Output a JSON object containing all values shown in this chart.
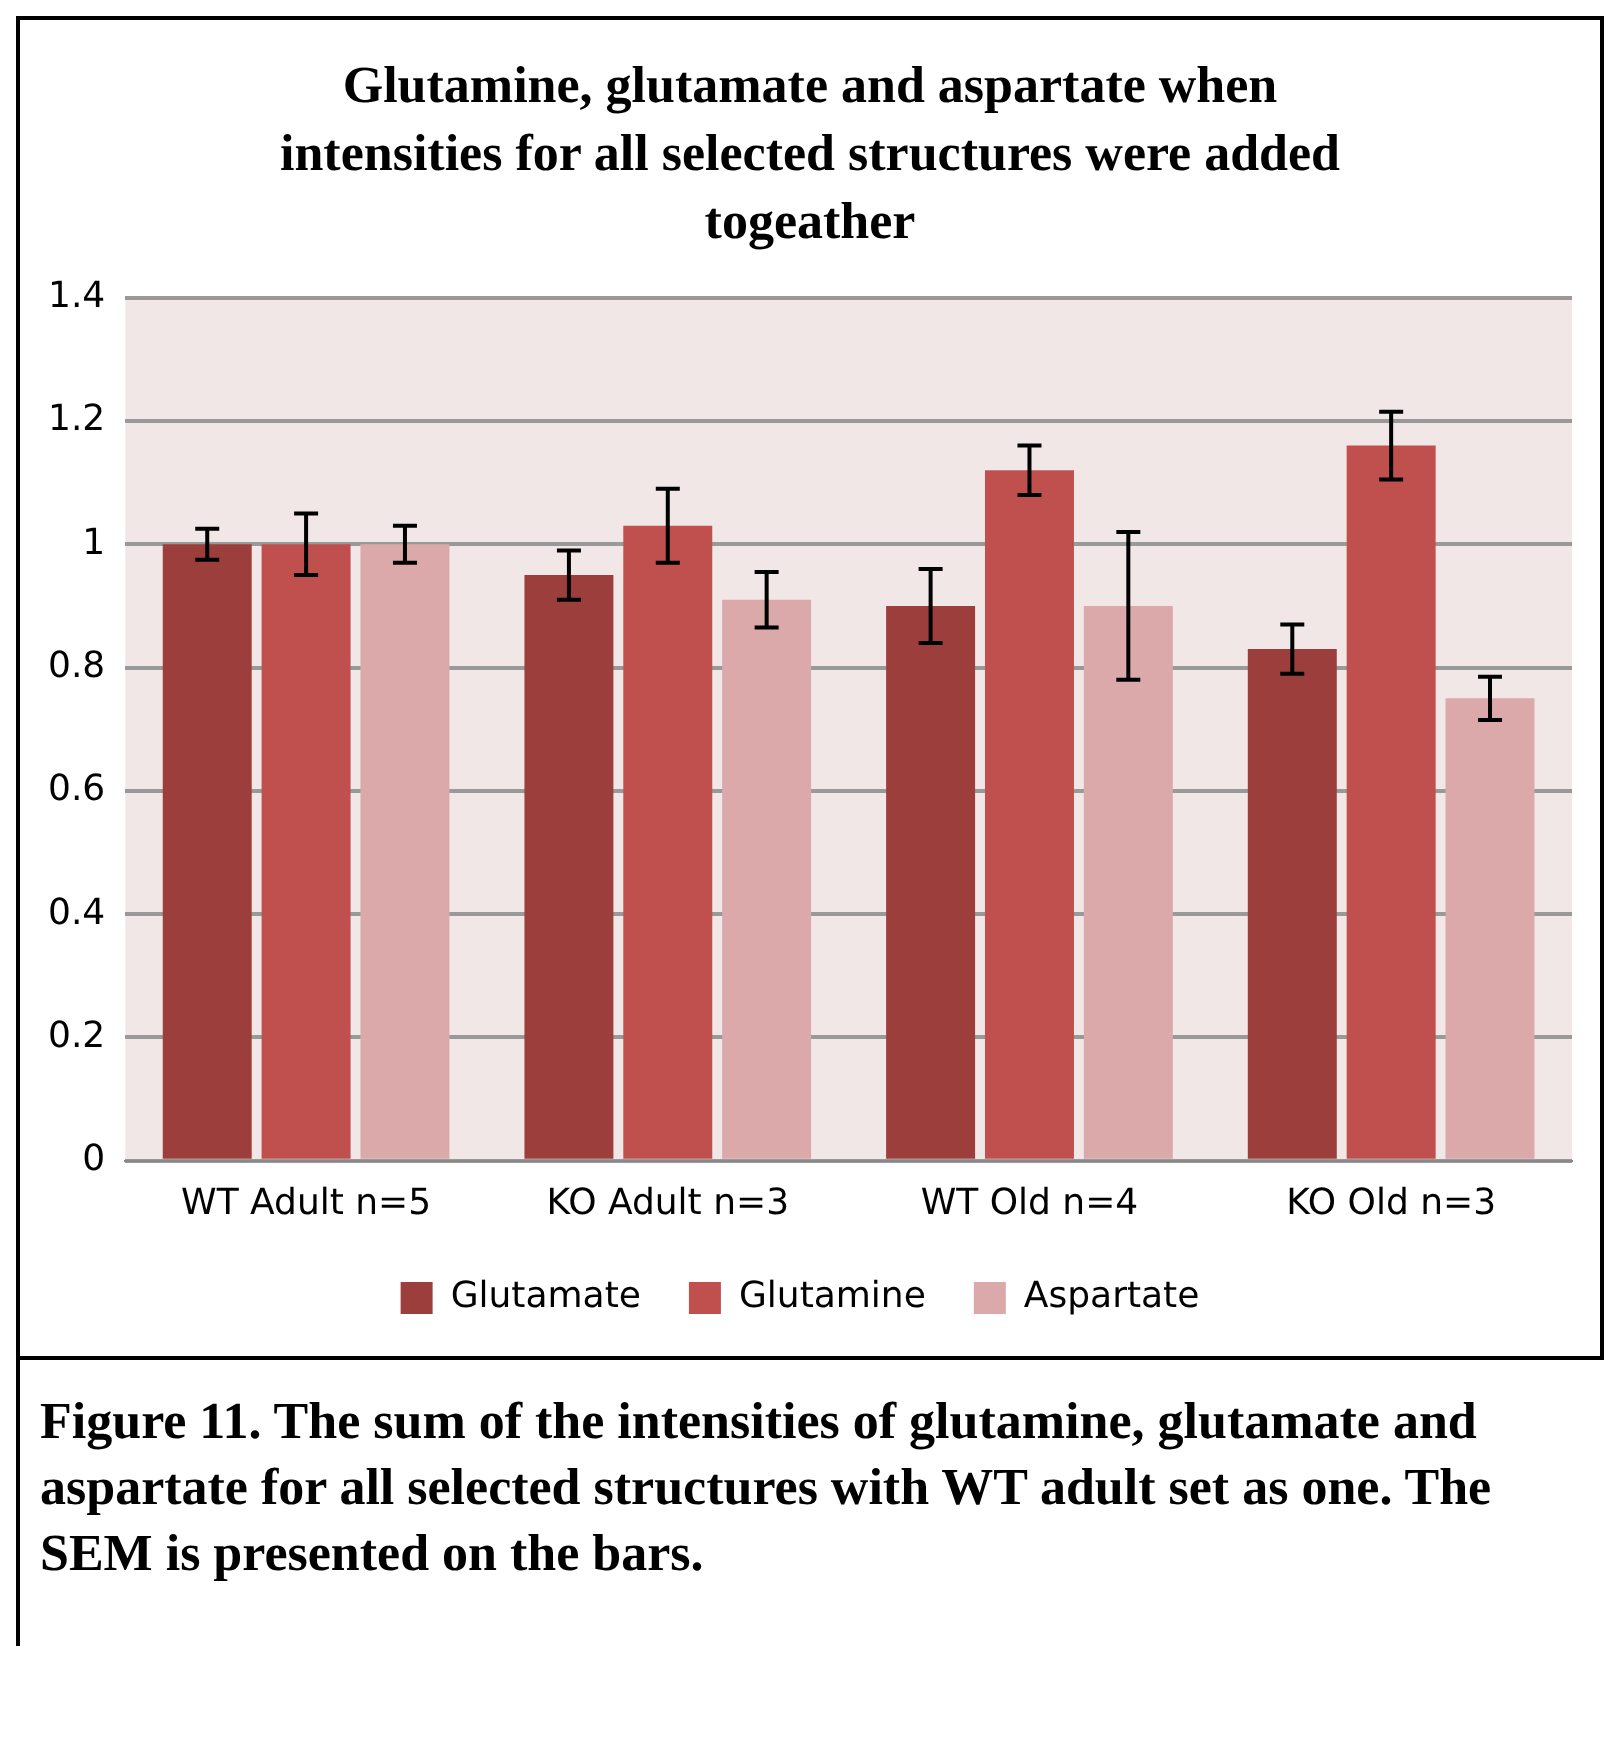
{
  "chart_data": {
    "type": "bar",
    "title": "Glutamine, glutamate and aspartate when intensities for all selected structures were added togeather",
    "categories": [
      "WT Adult n=5",
      "KO Adult n=3",
      "WT Old n=4",
      "KO Old n=3"
    ],
    "series": [
      {
        "name": "Glutamate",
        "color": "#9c3f3c",
        "values": [
          1.0,
          0.95,
          0.9,
          0.83
        ],
        "errors": [
          0.025,
          0.04,
          0.06,
          0.04
        ]
      },
      {
        "name": "Glutamine",
        "color": "#c0504d",
        "values": [
          1.0,
          1.03,
          1.12,
          1.16
        ],
        "errors": [
          0.05,
          0.06,
          0.04,
          0.055
        ]
      },
      {
        "name": "Aspartate",
        "color": "#dba9a9",
        "values": [
          1.0,
          0.91,
          0.9,
          0.75
        ],
        "errors": [
          0.03,
          0.045,
          0.12,
          0.035
        ]
      }
    ],
    "ylim": [
      0,
      1.4
    ],
    "yticks": [
      0,
      0.2,
      0.4,
      0.6,
      0.8,
      1,
      1.2,
      1.4
    ],
    "grid": "y",
    "legend": "bottom",
    "annotations": [
      "Figure 11. The sum of the intensities of glutamine, glutamate and aspartate for all selected structures with WT adult set as one. The SEM is presented on the bars."
    ]
  }
}
